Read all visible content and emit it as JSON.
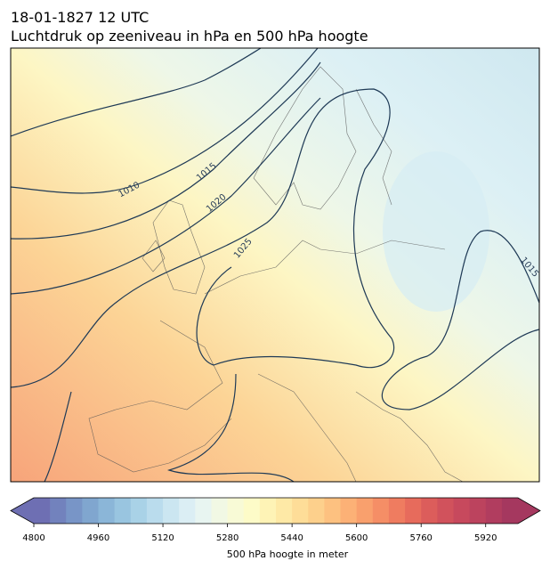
{
  "header": {
    "title_line1": "18-01-1827 12 UTC",
    "title_line2": "Luchtdruk op zeeniveau in hPa en 500 hPa hoogte"
  },
  "map": {
    "contour_labels": [
      1010,
      1015,
      1020,
      1025,
      1015
    ]
  },
  "colorbar": {
    "label": "500 hPa hoogte in meter",
    "lim": [
      4800,
      6000
    ],
    "ticks": [
      4800,
      4960,
      5120,
      5280,
      5440,
      5600,
      5760,
      5920
    ],
    "colors": [
      "#6e6fb3",
      "#7282bd",
      "#7895c7",
      "#80a6cf",
      "#8bb6d8",
      "#99c5e0",
      "#a9d2e7",
      "#badced",
      "#cbe6f1",
      "#dbeef4",
      "#e8f5f1",
      "#f1f8e4",
      "#f8fad6",
      "#fdfbc8",
      "#fef3b6",
      "#fee9a6",
      "#fedd98",
      "#fdd08c",
      "#fdc180",
      "#fcb176",
      "#f9a06d",
      "#f58e66",
      "#ef7c60",
      "#e76b5c",
      "#dc5d5b",
      "#d1525c",
      "#c7495d",
      "#bc435e",
      "#b13d5f",
      "#a5385f"
    ]
  }
}
